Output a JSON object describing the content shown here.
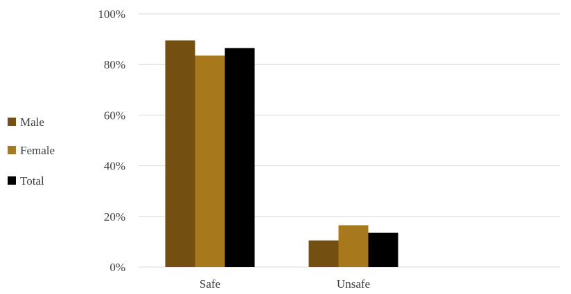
{
  "chart_data": {
    "type": "bar",
    "categories": [
      "Safe",
      "Unsafe"
    ],
    "series": [
      {
        "name": "Male",
        "values": [
          89.5,
          10.5
        ],
        "color": "#734f12"
      },
      {
        "name": "Female",
        "values": [
          83.5,
          16.5
        ],
        "color": "#a8781c"
      },
      {
        "name": "Total",
        "values": [
          86.5,
          13.5
        ],
        "color": "#000000"
      }
    ],
    "y_ticks": [
      "0%",
      "20%",
      "40%",
      "60%",
      "80%",
      "100%"
    ],
    "ylim": [
      0,
      100
    ],
    "grid": true,
    "legend_position": "left",
    "title": "",
    "xlabel": "",
    "ylabel": ""
  }
}
